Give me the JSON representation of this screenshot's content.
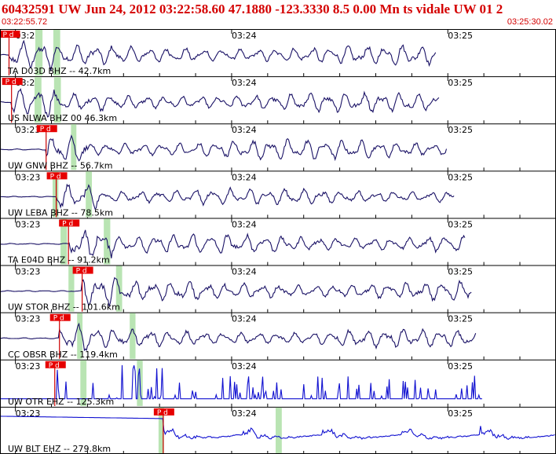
{
  "header": {
    "title": "60432591 UW Jun 24, 2012 03:22:58.60    47.1880 -123.3330  8.5 0.00 Mn ts vidale UW 01    2",
    "time_start": "03:22:55.72",
    "time_end": "03:25:30.02"
  },
  "colors": {
    "header_text": "#d40000",
    "trace_short_period": "#1a1266",
    "trace_spiky": "#1010d0",
    "pick_flag": "#e60000",
    "pick_line": "#cc0000",
    "window_band": "#b9e4b3",
    "grid": "#000000"
  },
  "chart_data": {
    "type": "line",
    "title": "",
    "time_start": "03:22:55.72",
    "time_end": "03:25:30.02",
    "time_ticks": [
      {
        "label": "03:23",
        "seconds": 4.28
      },
      {
        "label": "03:24",
        "seconds": 64.28
      },
      {
        "label": "03:25",
        "seconds": 124.28
      }
    ],
    "total_seconds": 154.3,
    "pick_label": "P d",
    "series": [
      {
        "name": "TA D03D BHZ -- 42.7km",
        "distance_km": 42.7,
        "p_pick_s": 2.5,
        "windows_s": [
          [
            9.8,
            11.8
          ],
          [
            14.8,
            16.7
          ]
        ],
        "style": "smooth",
        "amplitude": 1.0,
        "end_s": 121
      },
      {
        "name": "US NLWA BHZ 00 46.3km",
        "distance_km": 46.3,
        "p_pick_s": 3.2,
        "windows_s": [
          [
            9.6,
            11.5
          ],
          [
            15.0,
            16.9
          ]
        ],
        "style": "smooth",
        "amplitude": 1.0,
        "end_s": 122
      },
      {
        "name": "UW GNW BHZ -- 56.7km",
        "distance_km": 56.7,
        "p_pick_s": 12.8,
        "windows_s": [
          [
            19.7,
            21.2
          ]
        ],
        "style": "smooth",
        "amplitude": 1.0,
        "end_s": 124
      },
      {
        "name": "UW LEBA BHZ -- 78.5km",
        "distance_km": 78.5,
        "p_pick_s": 15.6,
        "windows_s": [
          [
            14.6,
            16.2
          ],
          [
            23.8,
            25.5
          ]
        ],
        "style": "smooth",
        "amplitude": 0.85,
        "end_s": 126
      },
      {
        "name": "TA E04D BHZ -- 91.2km",
        "distance_km": 91.2,
        "p_pick_s": 19.0,
        "windows_s": [
          [
            16.8,
            18.6
          ],
          [
            28.8,
            30.6
          ]
        ],
        "style": "smooth",
        "amplitude": 1.0,
        "end_s": 129
      },
      {
        "name": "UW STOR BHZ -- 101.6km",
        "distance_km": 101.6,
        "p_pick_s": 22.8,
        "windows_s": [
          [
            19.0,
            20.6
          ],
          [
            32.2,
            33.9
          ]
        ],
        "style": "smooth",
        "amplitude": 1.0,
        "end_s": 131
      },
      {
        "name": "CC OBSR BHZ -- 119.4km",
        "distance_km": 119.4,
        "p_pick_s": 16.5,
        "windows_s": [
          [
            21.4,
            22.9
          ],
          [
            36.0,
            37.6
          ]
        ],
        "style": "smooth",
        "amplitude": 0.95,
        "end_s": 132
      },
      {
        "name": "UW OTR EHZ -- 125.3km",
        "distance_km": 125.3,
        "p_pick_s": 15.2,
        "windows_s": [
          [
            22.3,
            24.0
          ],
          [
            38.0,
            39.6
          ]
        ],
        "style": "spiky",
        "amplitude": 1.0,
        "end_s": 134
      },
      {
        "name": "UW BLT EHZ -- 279.8km",
        "distance_km": 279.8,
        "p_pick_s": 45.3,
        "windows_s": [
          [
            44.0,
            45.5
          ],
          [
            76.5,
            78.2
          ]
        ],
        "style": "drift",
        "amplitude": 1.0,
        "end_s": 154
      }
    ]
  }
}
